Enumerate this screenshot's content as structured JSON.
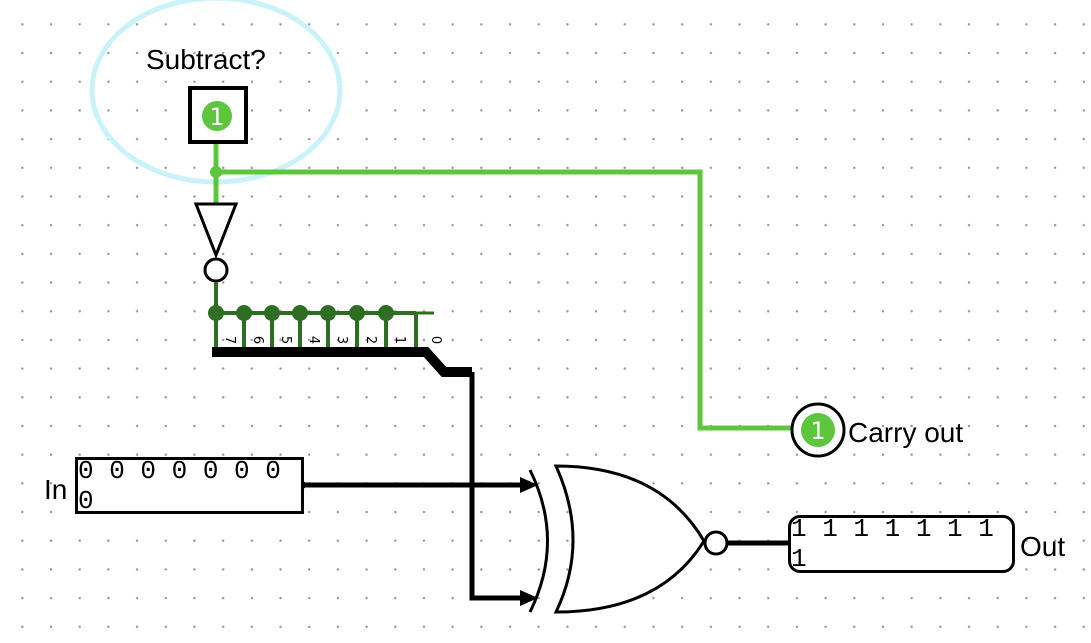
{
  "subtract": {
    "label": "Subtract?",
    "value": "1",
    "active_color": "#5cc63c"
  },
  "carry_out": {
    "label": "Carry out",
    "value": "1"
  },
  "input": {
    "label": "In",
    "value": "0 0 0 0 0 0 0 0"
  },
  "output": {
    "label": "Out",
    "value": "1 1 1 1 1 1 1 1"
  },
  "splitter": {
    "bit_labels": [
      "7",
      "6",
      "5",
      "4",
      "3",
      "2",
      "1",
      "0"
    ]
  },
  "colors": {
    "wire_active": "#5cc63c",
    "wire_bus": "#000000",
    "splitter_node": "#2e6e22",
    "selection_halo": "#c8f3f8"
  }
}
